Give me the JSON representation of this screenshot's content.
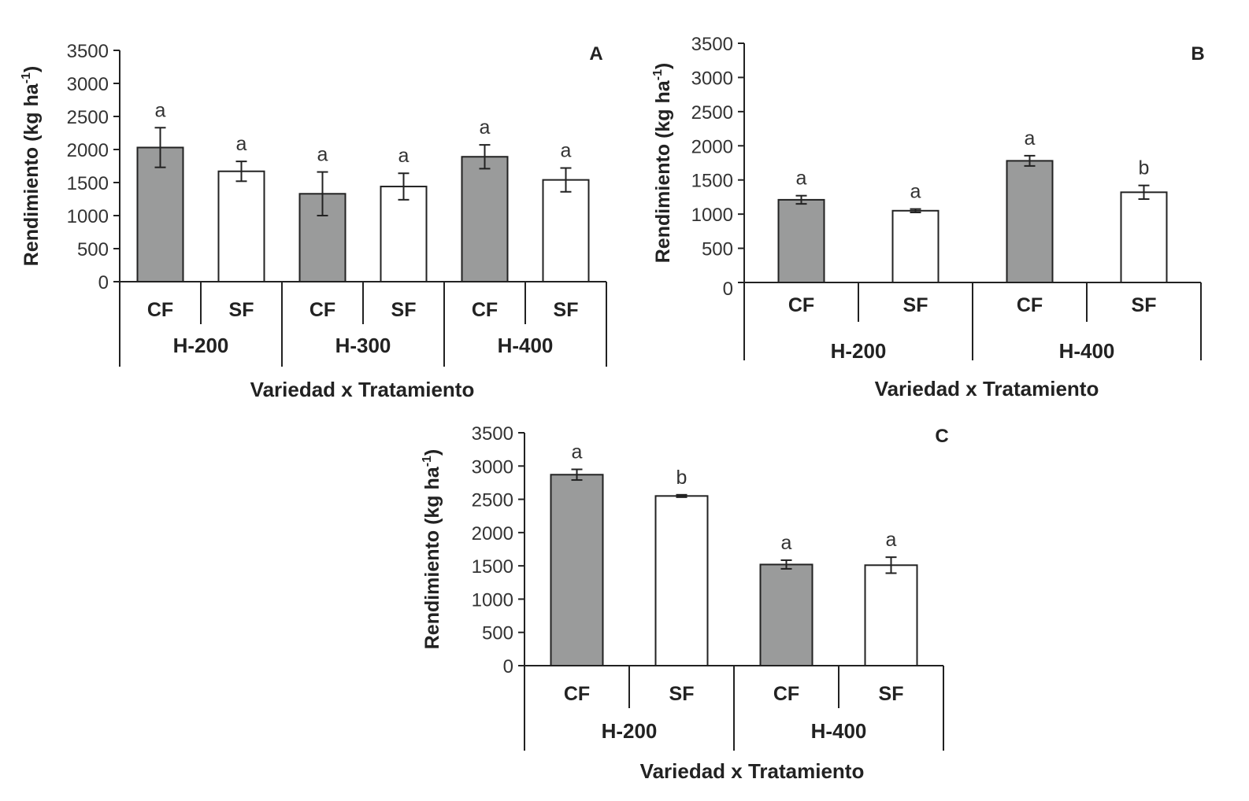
{
  "colors": {
    "filled": "#9a9b9b",
    "open": "#ffffff",
    "stroke": "#222222"
  },
  "chart_data": [
    {
      "type": "bar",
      "title": "A",
      "xlabel": "Variedad x Tratamiento",
      "ylabel": "Rendimiento (kg ha",
      "ylabel_sup": "-1",
      "ylabel_close": ")",
      "ylim": [
        0,
        3500
      ],
      "yticks": [
        0,
        500,
        1000,
        1500,
        2000,
        2500,
        3000,
        3500
      ],
      "ytick_labels": [
        "0",
        "500",
        "1000",
        "1500",
        "2000",
        "2500",
        "3000",
        "3500"
      ],
      "categories": [
        "CF",
        "SF",
        "CF",
        "SF",
        "CF",
        "SF"
      ],
      "groups": [
        "H-200",
        "H-300",
        "H-400"
      ],
      "fill": [
        "filled",
        "open",
        "filled",
        "open",
        "filled",
        "open"
      ],
      "values": [
        2030,
        1670,
        1330,
        1440,
        1890,
        1540
      ],
      "errors": [
        300,
        150,
        330,
        200,
        180,
        180
      ],
      "letters": [
        "a",
        "a",
        "a",
        "a",
        "a",
        "a"
      ]
    },
    {
      "type": "bar",
      "title": "B",
      "xlabel": "Variedad x Tratamiento",
      "ylabel": "Rendimiento (kg ha",
      "ylabel_sup": "-1",
      "ylabel_close": ")",
      "ylim": [
        0,
        3500
      ],
      "yticks": [
        0,
        500,
        1000,
        1500,
        2000,
        2500,
        3000,
        3500
      ],
      "ytick_labels": [
        "0",
        "500",
        "1000",
        "1500",
        "2000",
        "2500",
        "3000",
        "3500"
      ],
      "categories": [
        "CF",
        "SF",
        "CF",
        "SF"
      ],
      "groups": [
        "H-200",
        "H-400"
      ],
      "fill": [
        "filled",
        "open",
        "filled",
        "open"
      ],
      "values": [
        1210,
        1050,
        1780,
        1320
      ],
      "errors": [
        60,
        25,
        75,
        100
      ],
      "letters": [
        "a",
        "a",
        "a",
        "b"
      ]
    },
    {
      "type": "bar",
      "title": "C",
      "xlabel": "Variedad x Tratamiento",
      "ylabel": "Rendimiento (kg ha",
      "ylabel_sup": "-1",
      "ylabel_close": ")",
      "ylim": [
        0,
        3500
      ],
      "yticks": [
        0,
        500,
        1000,
        1500,
        2000,
        2500,
        3000,
        3500
      ],
      "ytick_labels": [
        "0",
        "500",
        "1000",
        "1500",
        "2000",
        "2500",
        "3000",
        "3500"
      ],
      "categories": [
        "CF",
        "SF",
        "CF",
        "SF"
      ],
      "groups": [
        "H-200",
        "H-400"
      ],
      "fill": [
        "filled",
        "open",
        "filled",
        "open"
      ],
      "values": [
        2870,
        2550,
        1520,
        1510
      ],
      "errors": [
        80,
        18,
        65,
        120
      ],
      "letters": [
        "a",
        "b",
        "a",
        "a"
      ]
    }
  ]
}
